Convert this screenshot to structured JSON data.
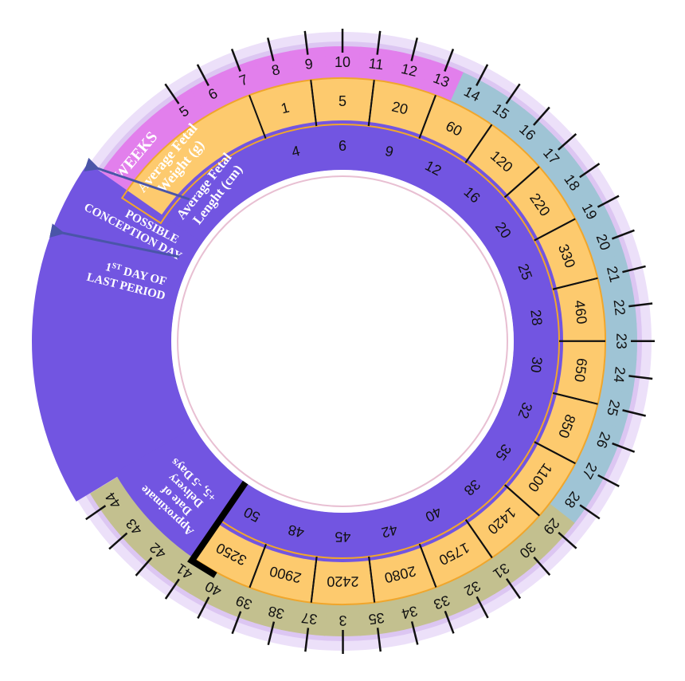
{
  "weeks": {
    "label": "WEEKS",
    "values": [
      5,
      6,
      7,
      8,
      9,
      10,
      11,
      12,
      13,
      14,
      15,
      16,
      17,
      18,
      19,
      20,
      21,
      22,
      23,
      24,
      25,
      26,
      27,
      28,
      29,
      30,
      31,
      32,
      33,
      34,
      35,
      3,
      37,
      38,
      39,
      40,
      41,
      42,
      43,
      44
    ]
  },
  "weight": {
    "label_lines": [
      "Average Fetal",
      "Weight (g)"
    ],
    "values": [
      1,
      5,
      20,
      60,
      120,
      220,
      330,
      460,
      650,
      850,
      1100,
      1420,
      1750,
      2080,
      2420,
      2900,
      3250
    ]
  },
  "length": {
    "label_lines": [
      "Average Fetal",
      "Lenght (cm)"
    ],
    "values": [
      4,
      6,
      9,
      12,
      16,
      20,
      25,
      28,
      30,
      32,
      35,
      38,
      40,
      42,
      45,
      48,
      50
    ]
  },
  "conception": {
    "lines": [
      "POSSIBLE",
      "CONCEPTION DAY"
    ]
  },
  "last_period": {
    "number": "1",
    "suffix": "ST",
    "rest": " DAY OF",
    "line2": "LAST PERIOD"
  },
  "delivery": {
    "lines": [
      "Approximate",
      "Date of",
      "Delivery",
      "+5, -5 Days"
    ]
  }
}
